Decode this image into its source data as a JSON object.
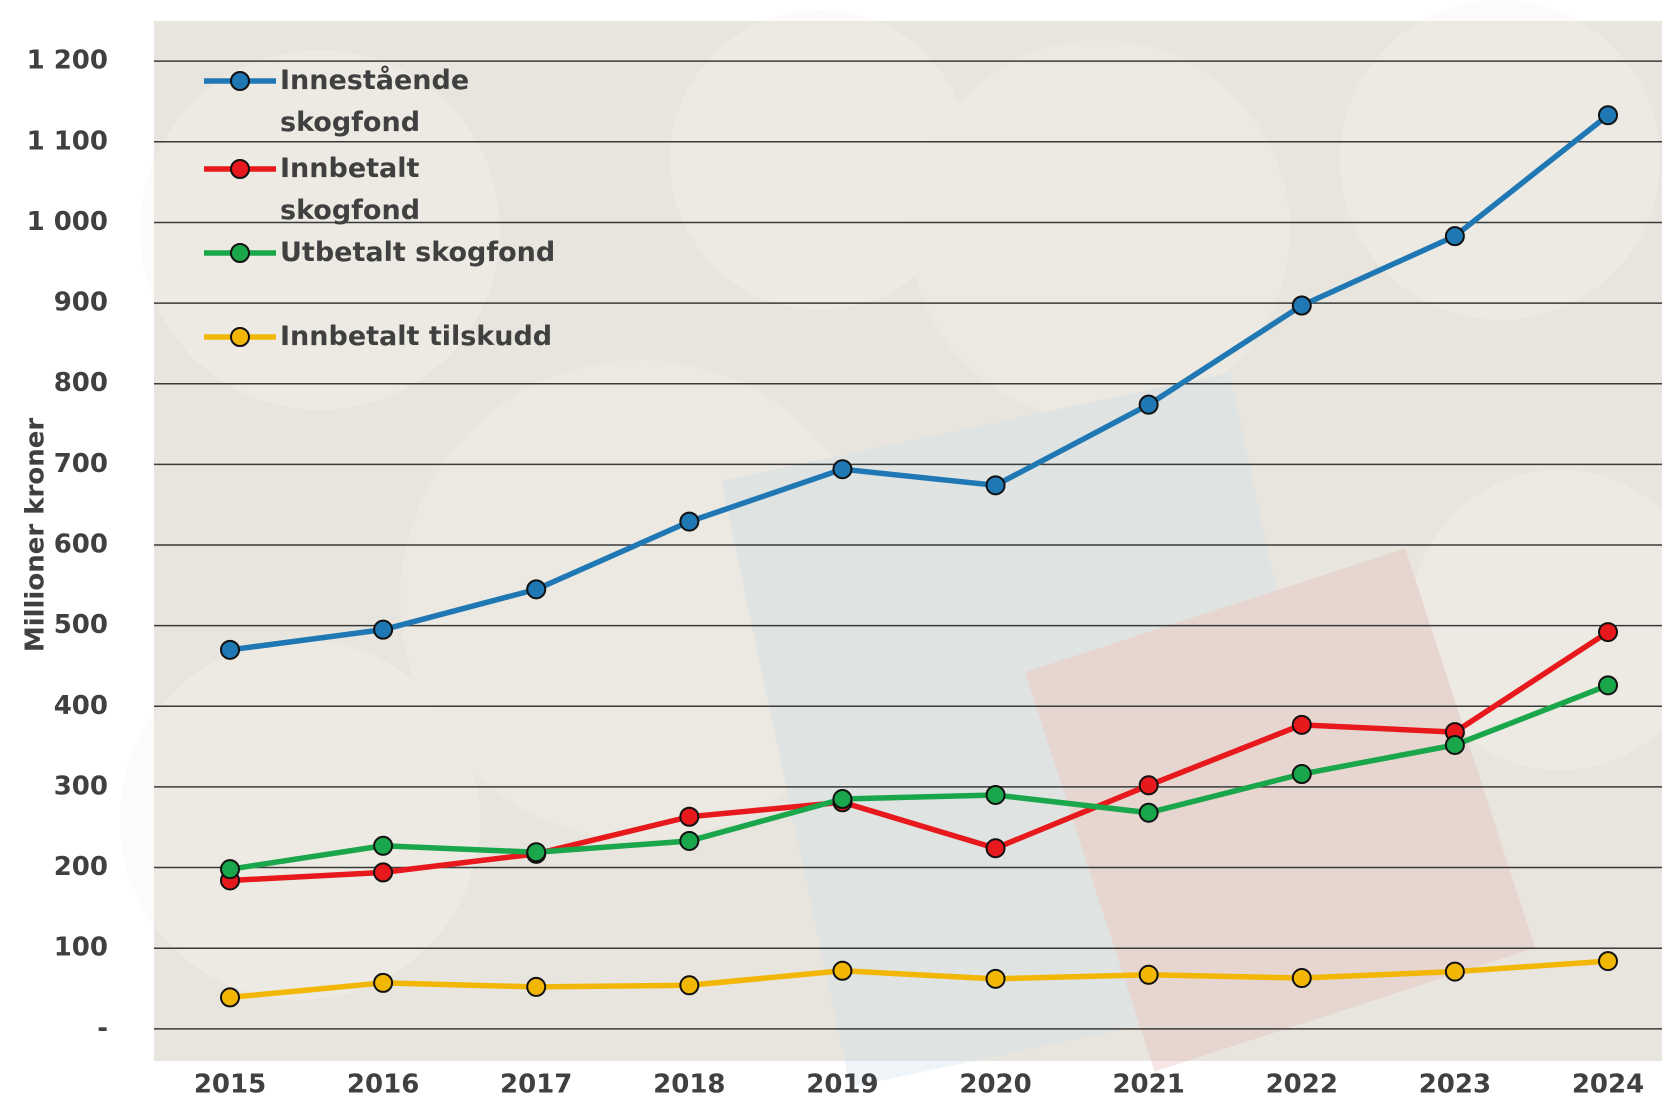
{
  "chart_data": {
    "type": "line",
    "y_label": "Millioner kroner",
    "categories": [
      "2015",
      "2016",
      "2017",
      "2018",
      "2019",
      "2020",
      "2021",
      "2022",
      "2023",
      "2024"
    ],
    "series": [
      {
        "name": "Innestående skogfond",
        "color": "#1f78b4",
        "values": [
          470,
          495,
          545,
          629,
          694,
          674,
          774,
          897,
          983,
          1133
        ]
      },
      {
        "name": "Innbetalt skogfond",
        "color": "#e8191c",
        "values": [
          184,
          194,
          217,
          263,
          281,
          224,
          302,
          377,
          368,
          492
        ]
      },
      {
        "name": "Utbetalt skogfond",
        "color": "#1aa64a",
        "values": [
          198,
          227,
          219,
          233,
          285,
          290,
          268,
          316,
          352,
          426
        ]
      },
      {
        "name": "Innbetalt tilskudd",
        "color": "#f2b705",
        "values": [
          39,
          57,
          52,
          54,
          72,
          62,
          67,
          63,
          71,
          84
        ]
      }
    ],
    "ylim": [
      -25,
      1225
    ],
    "yticks": [
      {
        "value": 0,
        "label": "-"
      },
      100,
      200,
      300,
      400,
      500,
      600,
      700,
      800,
      900,
      {
        "value": 1000,
        "label": "1 000"
      },
      {
        "value": 1100,
        "label": "1 100"
      },
      {
        "value": 1200,
        "label": "1 200"
      }
    ],
    "grid": true,
    "legend": "top-left"
  }
}
